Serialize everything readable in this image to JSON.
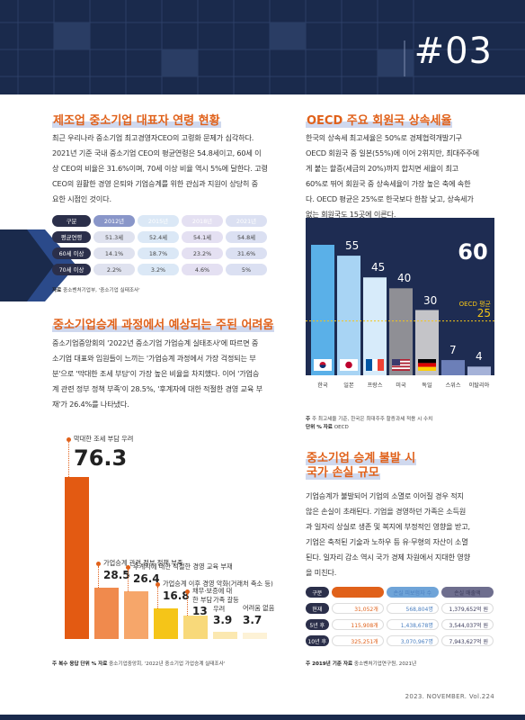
{
  "page_number": "#03",
  "footer": "2023. NOVEMBER. Vol.224",
  "left": {
    "section1": {
      "title": "제조업 중소기업 대표자 연령 현황",
      "lines": [
        "최근 우리나라 중소기업 최고경영자CEO의 고령화 문제가 심각하다.",
        "2021년 기준 국내 중소기업 CEO의 평균연령은 54.8세이고, 60세 이",
        "상 CEO의 비율은 31.6%이며, 70세 이상 비율 역시 5%에 달한다. 고령",
        "CEO의 원활한 경영 은퇴와 기업승계를 위한 관심과 지원이 상당히 중",
        "요한 시점인 것이다."
      ],
      "table": {
        "header": [
          "구분",
          "2012년",
          "2015년",
          "2018년",
          "2021년"
        ],
        "rows": [
          [
            "평균연령",
            "51.3세",
            "52.4세",
            "54.1세",
            "54.8세"
          ],
          [
            "60세 이상",
            "14.1%",
            "18.7%",
            "23.2%",
            "31.6%"
          ],
          [
            "70세 이상",
            "2.2%",
            "3.2%",
            "4.6%",
            "5%"
          ]
        ]
      },
      "source_label": "자료",
      "source": "중소벤처기업부, '중소기업 실태조사'"
    },
    "section2": {
      "title": "중소기업승계 과정에서 예상되는 주된 어려움",
      "lines": [
        "중소기업중앙회의 '2022년 중소기업 가업승계 실태조사'에 따르면 중",
        "소기업 대표와 임원들이 느끼는 '가업승계 과정에서 가장 걱정되는 부",
        "분'으로 '막대한 조세 부담'이 가장 높은 비율을 차지했다. 이어 '가업승",
        "계 관련 정부 정책 부족'이 28.5%, '후계자에 대한 적절한 경영 교육 부",
        "재'가 26.4%를 나타냈다."
      ],
      "chart_data": {
        "type": "bar",
        "categories": [
          "막대한 조세 부담 우려",
          "가업승계 관련 정부 정책 부족",
          "후계자에 대한 적절한 경영 교육 부재",
          "가업승계 이후 경영 악화(거래처 축소 등)",
          "채무·보증에 대한 부담",
          "가족 갈등 우려",
          "어려움 없음"
        ],
        "values": [
          76.3,
          28.5,
          26.4,
          16.8,
          13,
          3.9,
          3.7
        ],
        "value_labels": [
          "76.3",
          "28.5",
          "26.4",
          "16.8",
          "13",
          "3.9",
          "3.7"
        ],
        "colors": [
          "#e35a12",
          "#f08a4d",
          "#f6a66a",
          "#f5c518",
          "#f8d97a",
          "#fbe8b0",
          "#fdf2d6"
        ]
      },
      "source_note": "주 복수 응답",
      "source_unit": "단위 %",
      "source_label": "자료",
      "source": "중소기업중앙회, '2022년 중소기업 가업승계 실태조사'"
    }
  },
  "right": {
    "section1": {
      "title": "OECD 주요 회원국 상속세율",
      "lines": [
        "한국의 상속세 최고세율은 50%로 경제협력개발기구",
        "OECD 회원국 중 일본(55%)에 이어 2위지만, 최대주주에",
        "게 붙는 할증(세금의 20%)까지 합치면 세율이 최고",
        "60%로 뛰어 회원국 중 상속세율이 가장 높은 축에 속한",
        "다. OECD 평균은 25%로 한국보다 한참 낮고, 상속세가",
        "없는 회원국도 15곳에 이른다."
      ],
      "chart_data": {
        "type": "bar",
        "categories": [
          "한국",
          "일본",
          "프랑스",
          "미국",
          "독일",
          "스위스",
          "이탈리아"
        ],
        "values": [
          60,
          55,
          45,
          40,
          30,
          7,
          4
        ],
        "value_labels": [
          "60",
          "55",
          "45",
          "40",
          "30",
          "7",
          "4"
        ],
        "reference_line": {
          "label": "OECD 평균",
          "value": 25,
          "value_label": "25"
        },
        "colors": [
          "#5ab0e8",
          "#a8d4f4",
          "#d7ebfa",
          "#8f8f95",
          "#c4c4c8",
          "#6c7fb8",
          "#a5b2d8"
        ]
      },
      "note": "주 최고세율 기준, 한국은 최대주주 할증과세 적용 시 수치",
      "unit": "단위 %",
      "source_label": "자료",
      "source": "OECD"
    },
    "section2": {
      "title_line1": "중소기업 승계 불발 시",
      "title_line2": "국가 손실 규모",
      "lines": [
        "기업승계가 불발되어 기업의 소멸로 이어질 경우 적지",
        "않은 손실이 초래된다. 기업을 경영하던 가족은 소득원",
        "과 일자리 상실로 생존 및 복지에 부정적인 영향을 받고,",
        "기업은 축적된 기술과 노하우 등 유·무형의 자산이 소멸",
        "된다. 일자리 감소 역시 국가 경제 차원에서 지대한 영향",
        "을 미친다."
      ],
      "table": {
        "header": [
          "구분",
          "손실 사업체 수",
          "손실 피보험자 수",
          "손실 매출액"
        ],
        "rows": [
          [
            "현재",
            "31,052개",
            "568,804명",
            "1,379,652억 원"
          ],
          [
            "5년 후",
            "115,908개",
            "1,438,678명",
            "3,544,037억 원"
          ],
          [
            "10년 후",
            "325,251개",
            "3,070,967명",
            "7,943,627억 원"
          ]
        ]
      },
      "note": "주 2019년 기준",
      "source_label": "자료",
      "source": "중소벤처기업연구원, 2021년"
    }
  }
}
